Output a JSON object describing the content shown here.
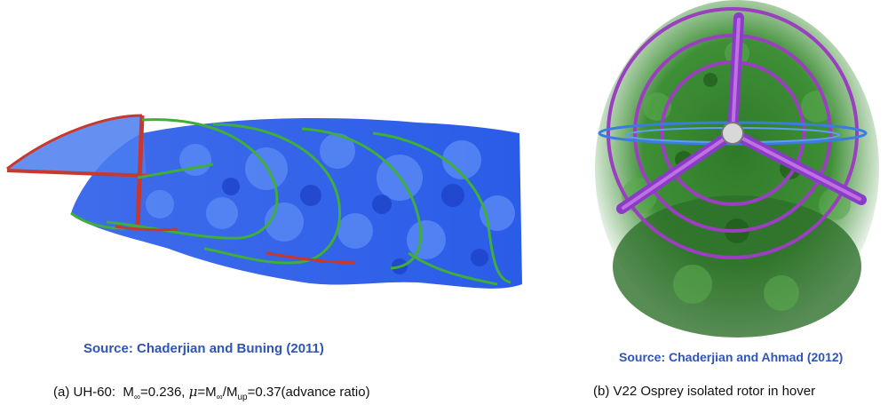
{
  "panel_a": {
    "source": "Source: Chaderjian and Buning (2011)",
    "caption": {
      "label": "(a) UH-60:",
      "mach_symbol": "M",
      "mach_sub": "∞",
      "mach_value": "=0.236,",
      "mu_symbol": "μ",
      "ratio_eq": "=M",
      "ratio_sub1": "∞",
      "ratio_slash": "/M",
      "ratio_sub2": "up",
      "ratio_value": "=0.37(advance ratio)"
    }
  },
  "panel_b": {
    "source": "Source: Chaderjian and Ahmad (2012)",
    "caption": "(b) V22 Osprey isolated rotor in hover"
  },
  "colors": {
    "source_text": "#2f55b5",
    "vortex_blue": "#2a5ce8",
    "vortex_green": "#3fae3a",
    "rotor_red": "#c8382c",
    "rotor_purple": "#9b3fc0",
    "dark_green": "#1f5a1c"
  }
}
